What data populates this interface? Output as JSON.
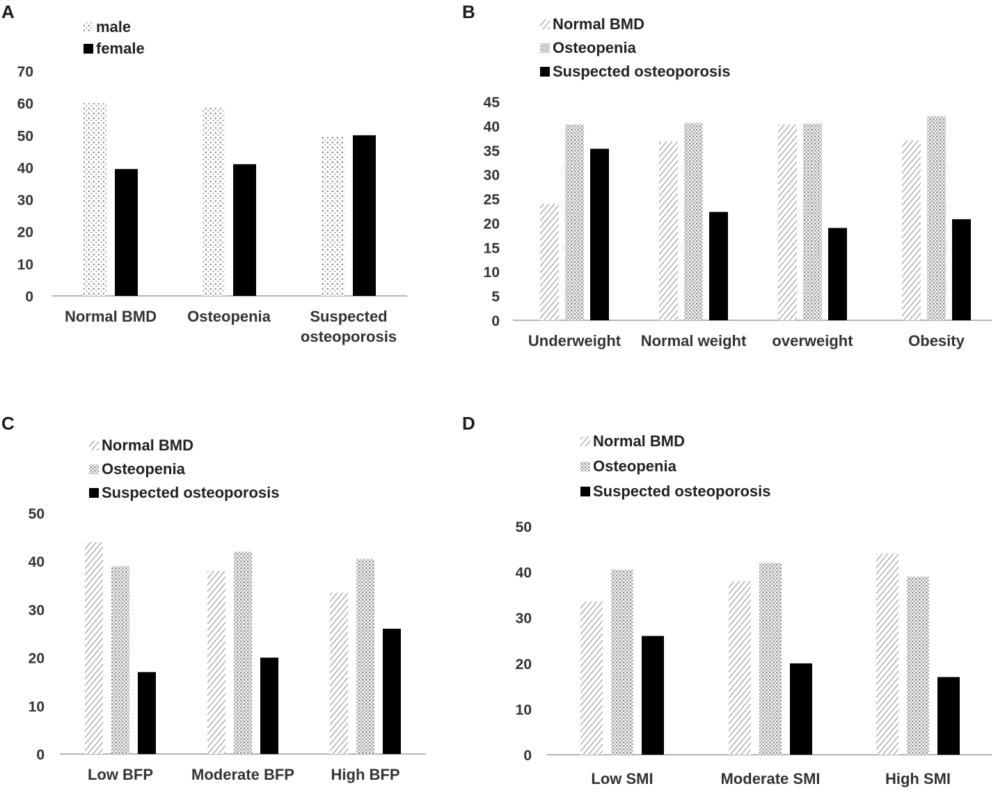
{
  "chart_data": [
    {
      "panel": "A",
      "type": "bar",
      "categories": [
        [
          "Normal BMD"
        ],
        [
          "Osteopenia"
        ],
        [
          "Suspected",
          "osteoporosis"
        ]
      ],
      "series": [
        {
          "name": "male",
          "pattern": "dots",
          "values": [
            60,
            58.5,
            49.5
          ]
        },
        {
          "name": "female",
          "pattern": "solid",
          "values": [
            39.5,
            41,
            50
          ]
        }
      ],
      "yticks": [
        0,
        10,
        20,
        30,
        40,
        50,
        60,
        70
      ],
      "ylim": [
        0,
        70
      ],
      "title": "",
      "xlabel": "",
      "ylabel": "",
      "legend": "top-left",
      "grid": false
    },
    {
      "panel": "B",
      "type": "bar",
      "categories": [
        [
          "Underweight"
        ],
        [
          "Normal weight"
        ],
        [
          "overweight"
        ],
        [
          "Obesity"
        ]
      ],
      "series": [
        {
          "name": "Normal BMD",
          "pattern": "diag",
          "values": [
            24,
            36.8,
            40.3,
            37
          ]
        },
        {
          "name": "Osteopenia",
          "pattern": "check",
          "values": [
            40.3,
            40.6,
            40.5,
            42
          ]
        },
        {
          "name": "Suspected osteoporosis",
          "pattern": "solid",
          "values": [
            35.3,
            22.3,
            19,
            20.8
          ]
        }
      ],
      "yticks": [
        0,
        5,
        10,
        15,
        20,
        25,
        30,
        35,
        40,
        45
      ],
      "ylim": [
        0,
        45
      ],
      "title": "",
      "xlabel": "",
      "ylabel": "",
      "legend": "top-left",
      "grid": false
    },
    {
      "panel": "C",
      "type": "bar",
      "categories": [
        [
          "Low BFP"
        ],
        [
          "Moderate BFP"
        ],
        [
          "High BFP"
        ]
      ],
      "series": [
        {
          "name": "Normal BMD",
          "pattern": "diag",
          "values": [
            44,
            38,
            33.5
          ]
        },
        {
          "name": "Osteopenia",
          "pattern": "check",
          "values": [
            39,
            42,
            40.5
          ]
        },
        {
          "name": "Suspected osteoporosis",
          "pattern": "solid",
          "values": [
            17,
            20,
            26
          ]
        }
      ],
      "yticks": [
        0,
        10,
        20,
        30,
        40,
        50
      ],
      "ylim": [
        0,
        50
      ],
      "title": "",
      "xlabel": "",
      "ylabel": "",
      "legend": "top-left",
      "grid": false
    },
    {
      "panel": "D",
      "type": "bar",
      "categories": [
        [
          "Low SMI"
        ],
        [
          "Moderate SMI"
        ],
        [
          "High SMI"
        ]
      ],
      "series": [
        {
          "name": "Normal BMD",
          "pattern": "diag",
          "values": [
            33.5,
            38,
            44
          ]
        },
        {
          "name": "Osteopenia",
          "pattern": "check",
          "values": [
            40.5,
            42,
            39
          ]
        },
        {
          "name": "Suspected osteoporosis",
          "pattern": "solid",
          "values": [
            26,
            20,
            17
          ]
        }
      ],
      "yticks": [
        0,
        10,
        20,
        30,
        40,
        50
      ],
      "ylim": [
        0,
        50
      ],
      "title": "",
      "xlabel": "",
      "ylabel": "",
      "legend": "top-left",
      "grid": false
    }
  ],
  "colors": {
    "solid": "#000000",
    "pattern_stroke": "#8a8a8a",
    "axis": "#9a9a9a",
    "text": "#333333"
  }
}
